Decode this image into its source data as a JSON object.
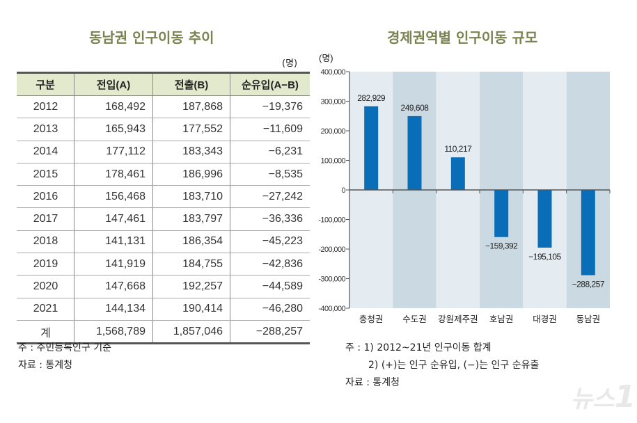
{
  "left": {
    "title": "동남권 인구이동 추이",
    "unit": "(명)",
    "columns": [
      "구분",
      "전입(A)",
      "전출(B)",
      "순유입(A−B)"
    ],
    "rows": [
      [
        "2012",
        "168,492",
        "187,868",
        "−19,376"
      ],
      [
        "2013",
        "165,943",
        "177,552",
        "−11,609"
      ],
      [
        "2014",
        "177,112",
        "183,343",
        "−6,231"
      ],
      [
        "2015",
        "178,461",
        "186,996",
        "−8,535"
      ],
      [
        "2016",
        "156,468",
        "183,710",
        "−27,242"
      ],
      [
        "2017",
        "147,461",
        "183,797",
        "−36,336"
      ],
      [
        "2018",
        "141,131",
        "186,354",
        "−45,223"
      ],
      [
        "2019",
        "141,919",
        "184,755",
        "−42,836"
      ],
      [
        "2020",
        "147,668",
        "192,257",
        "−44,589"
      ],
      [
        "2021",
        "144,134",
        "190,414",
        "−46,280"
      ],
      [
        "계",
        "1,568,789",
        "1,857,046",
        "−288,257"
      ]
    ],
    "notes": [
      "주 : 주민등록인구 기준",
      "자료 : 통계청"
    ]
  },
  "right": {
    "title": "경제권역별 인구이동 규모",
    "notes": [
      "주 : 1) 2012~21년 인구이동 합계",
      "2) (+)는 인구 순유입, (−)는 인구 순유출",
      "자료 : 통계청"
    ]
  },
  "chart_data": {
    "type": "bar",
    "title": "경제권역별 인구이동 규모",
    "ylabel": "(명)",
    "categories": [
      "충청권",
      "수도권",
      "강원제주권",
      "호남권",
      "대경권",
      "동남권"
    ],
    "values": [
      282929,
      249608,
      110217,
      -159392,
      -195105,
      -288257
    ],
    "data_labels": [
      "282,929",
      "249,608",
      "110,217",
      "−159,392",
      "−195,105",
      "−288,257"
    ],
    "ylim": [
      -400000,
      400000
    ],
    "yticks": [
      "400,000",
      "300,000",
      "200,000",
      "100,000",
      "0",
      "-100,000",
      "-200,000",
      "-300,000",
      "-400,000"
    ],
    "bar_color": "#0a6db8",
    "band_colors": [
      "#e4ecf2",
      "#cbd9e3"
    ],
    "grid": false
  },
  "watermark": "뉴스1"
}
